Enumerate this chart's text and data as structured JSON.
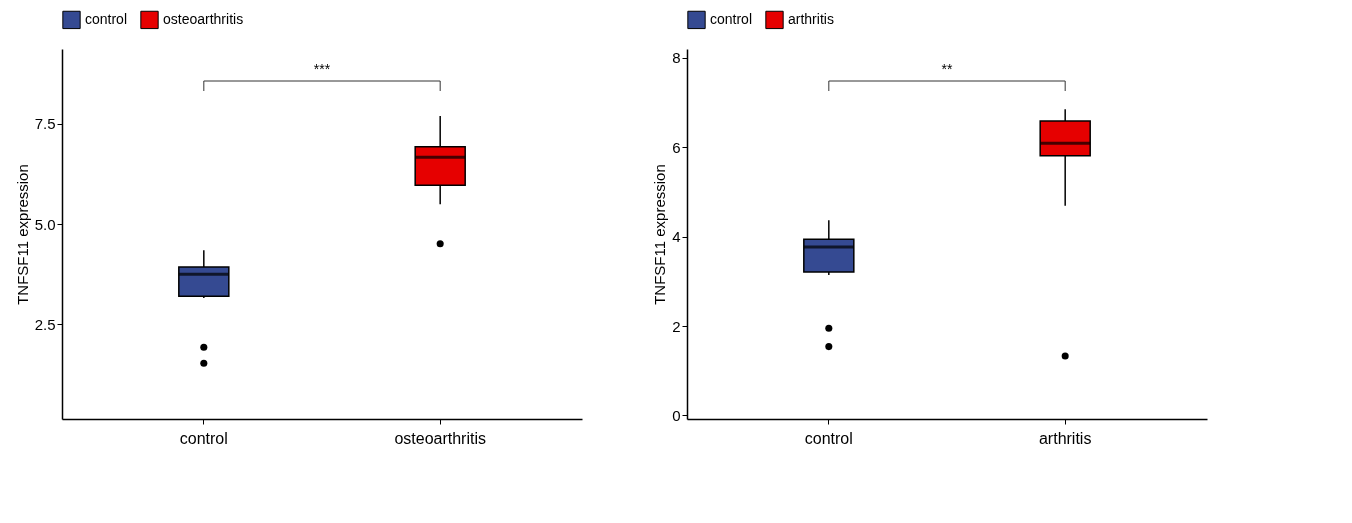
{
  "chart_data": [
    {
      "type": "box",
      "categories": [
        "control",
        "osteoarthritis"
      ],
      "ylabel": "TNFSF11 expression",
      "ylim": [
        0.14,
        9.37
      ],
      "yticks": [
        2.5,
        {
          "value": 5,
          "label": "5.0"
        },
        7.5
      ],
      "legend": "top",
      "grid": false,
      "annotations": [
        "***"
      ],
      "series": [
        {
          "name": "control",
          "color": "#354a92",
          "boxes": [
            {
              "low": 3.16,
              "q1": 3.2,
              "median": 3.75,
              "q3": 3.93,
              "high": 4.35,
              "outliers": [
                1.93,
                1.53
              ]
            },
            null
          ]
        },
        {
          "name": "osteoarthritis",
          "color": "#e60000",
          "boxes": [
            null,
            {
              "low": 5.5,
              "q1": 5.97,
              "median": 6.67,
              "q3": 6.93,
              "high": 7.7,
              "outliers": [
                4.51
              ]
            }
          ]
        }
      ]
    },
    {
      "type": "box",
      "categories": [
        "control",
        "arthritis"
      ],
      "ylabel": "TNFSF11 expression",
      "ylim": [
        -0.08,
        8.2
      ],
      "yticks": [
        0,
        2,
        4,
        6,
        8
      ],
      "legend": "top",
      "grid": false,
      "annotations": [
        "**"
      ],
      "series": [
        {
          "name": "control",
          "color": "#354a92",
          "boxes": [
            {
              "low": 3.14,
              "q1": 3.21,
              "median": 3.77,
              "q3": 3.94,
              "high": 4.37,
              "outliers": [
                1.95,
                1.54
              ]
            },
            null
          ]
        },
        {
          "name": "arthritis",
          "color": "#e60000",
          "boxes": [
            null,
            {
              "low": 4.69,
              "q1": 5.81,
              "median": 6.09,
              "q3": 6.59,
              "high": 6.85,
              "outliers": [
                1.33
              ]
            }
          ]
        }
      ]
    }
  ]
}
